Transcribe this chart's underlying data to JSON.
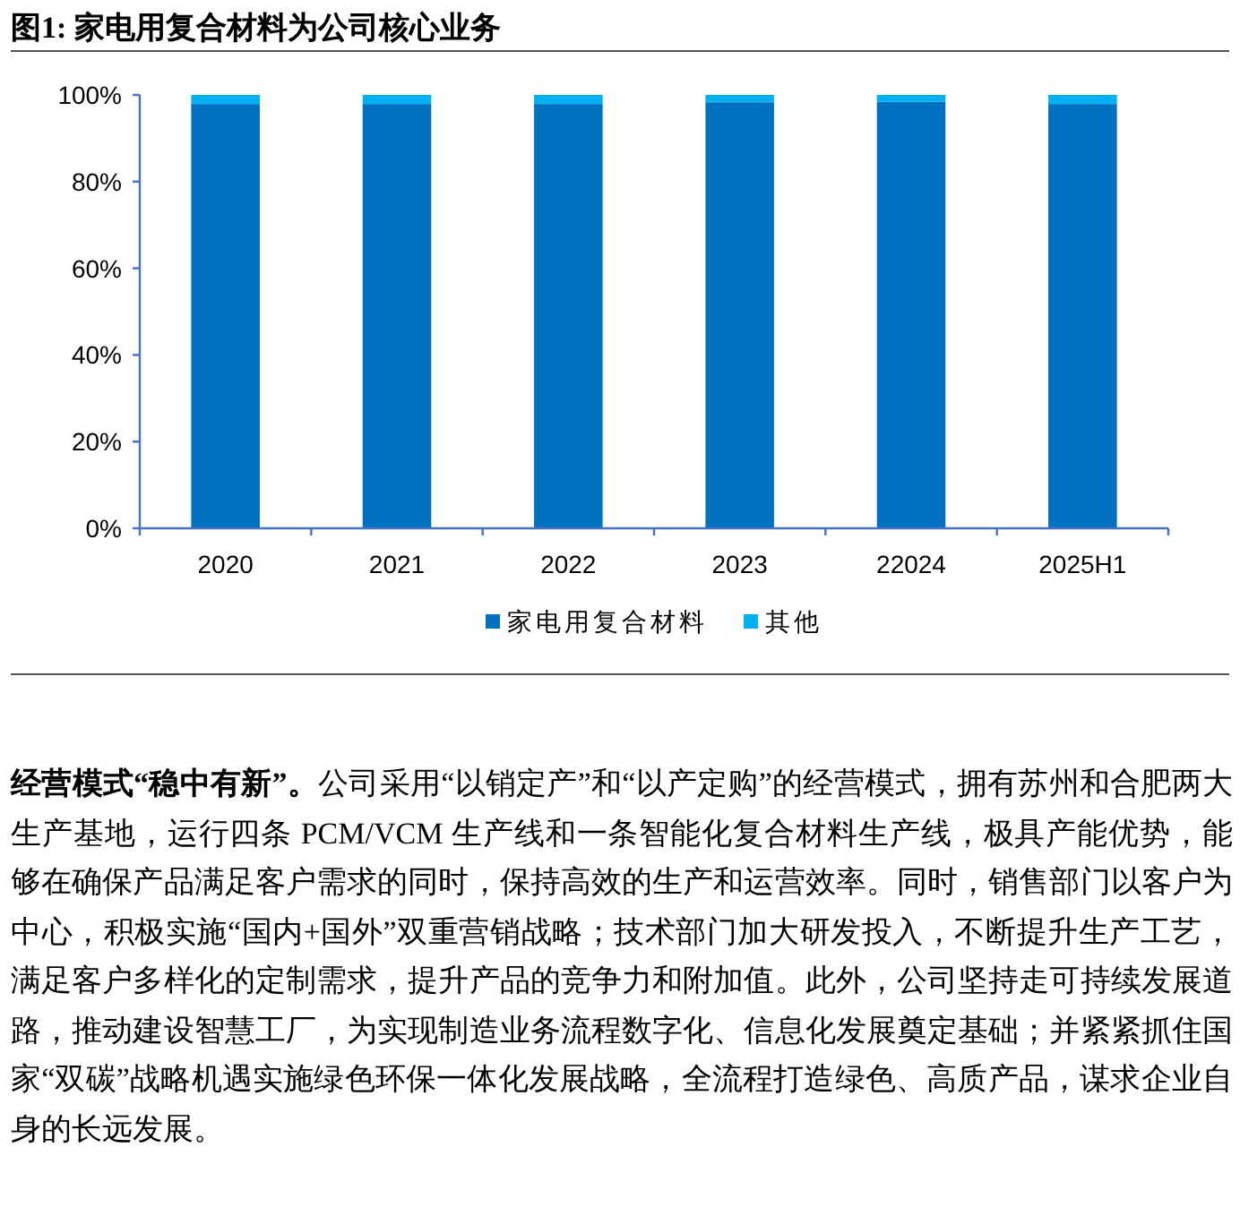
{
  "chart_data": {
    "type": "bar",
    "stacked": true,
    "title": "图1:  家电用复合材料为公司核心业务",
    "categories": [
      "2020",
      "2021",
      "2022",
      "2023",
      "22024",
      "2025H1"
    ],
    "series": [
      {
        "name": "家电用复合材料",
        "color": "#0070c0",
        "values": [
          97.9,
          97.9,
          97.9,
          98.3,
          98.4,
          97.9
        ]
      },
      {
        "name": "其他",
        "color": "#00b0f0",
        "values": [
          2.1,
          2.1,
          2.1,
          1.7,
          1.6,
          2.1
        ]
      }
    ],
    "ylim": [
      0,
      100
    ],
    "yticks": [
      {
        "value": 0,
        "label": "0%"
      },
      {
        "value": 20,
        "label": "20%"
      },
      {
        "value": 40,
        "label": "40%"
      },
      {
        "value": 60,
        "label": "60%"
      },
      {
        "value": 80,
        "label": "80%"
      },
      {
        "value": 100,
        "label": "100%"
      }
    ],
    "legend": "bottom",
    "annotations": [
      "**经营模式“稳中有新”。**公司采用“以销定产”和“以产定购”的经营模式，拥有苏州和合肥两大生产基地，运行四条 PCM/VCM 生产线和一条智能化复合材料生产线，极具产能优势，能够在确保产品满足客户需求的同时，保持高效的生产和运营效率。同时，销售部门以客户为中心，积极实施“国内+国外”双重营销战略；技术部门加大研发投入，不断提升生产工艺，满足客户多样化的定制需求，提升产品的竞争力和附加值。此外，公司坚持走可持续发展道路，推动建设智慧工厂，为实现制造业务流程数字化、信息化发展奠定基础；并紧紧抓住国家“双碳”战略机遇实施绿色环保一体化发展战略，全流程打造绿色、高质产品，谋求企业自身的长远发展。"
    ]
  }
}
